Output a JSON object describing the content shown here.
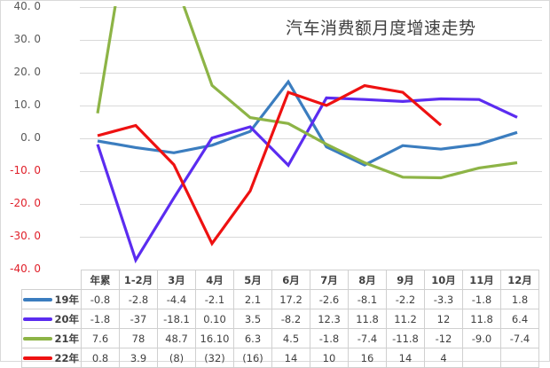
{
  "chart_data": {
    "type": "line",
    "title": "汽车消费额月度增速走势",
    "xlabel": "",
    "ylabel": "",
    "ylim": [
      -40,
      40
    ],
    "yticks": [
      "40.0",
      "30.0",
      "20.0",
      "10.0",
      "0.0",
      "-10.0",
      "-20.0",
      "-30.0",
      "-40.0"
    ],
    "grid": true,
    "legend_position": "data-table-left",
    "categories": [
      "年累",
      "1-2月",
      "3月",
      "4月",
      "5月",
      "6月",
      "7月",
      "8月",
      "9月",
      "10月",
      "11月",
      "12月"
    ],
    "series": [
      {
        "name": "19年",
        "color": "#3b7dbf",
        "values": [
          -0.8,
          -2.8,
          -4.4,
          -2.1,
          2.1,
          17.2,
          -2.6,
          -8.1,
          -2.2,
          -3.3,
          -1.8,
          1.8
        ],
        "labels": [
          "-0.8",
          "-2.8",
          "-4.4",
          "-2.1",
          "2.1",
          "17.2",
          "-2.6",
          "-8.1",
          "-2.2",
          "-3.3",
          "-1.8",
          "1.8"
        ]
      },
      {
        "name": "20年",
        "color": "#5b2cf0",
        "values": [
          -1.8,
          -37,
          -18.1,
          0.1,
          3.5,
          -8.2,
          12.3,
          11.8,
          11.2,
          12,
          11.8,
          6.4
        ],
        "labels": [
          "-1.8",
          "-37",
          "-18.1",
          "0.10",
          "3.5",
          "-8.2",
          "12.3",
          "11.8",
          "11.2",
          "12",
          "11.8",
          "6.4"
        ]
      },
      {
        "name": "21年",
        "color": "#8db446",
        "values": [
          7.6,
          78,
          48.7,
          16.1,
          6.3,
          4.5,
          -1.8,
          -7.4,
          -11.8,
          -12,
          -9.0,
          -7.4
        ],
        "labels": [
          "7.6",
          "78",
          "48.7",
          "16.10",
          "6.3",
          "4.5",
          "-1.8",
          "-7.4",
          "-11.8",
          "-12",
          "-9.0",
          "-7.4"
        ]
      },
      {
        "name": "22年",
        "color": "#ee1111",
        "values": [
          0.8,
          3.9,
          -8,
          -32,
          -16,
          14,
          10,
          16,
          14,
          4,
          null,
          null
        ],
        "labels": [
          "0.8",
          "3.9",
          "(8)",
          "(32)",
          "(16)",
          "14",
          "10",
          "16",
          "14",
          "4",
          "",
          ""
        ]
      }
    ]
  }
}
